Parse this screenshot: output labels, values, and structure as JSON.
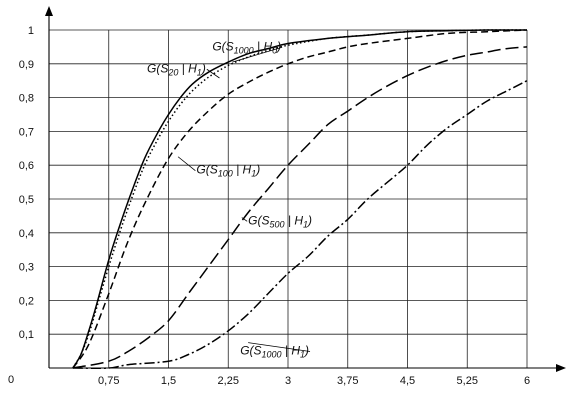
{
  "chart_data": {
    "type": "line",
    "title": "",
    "xlabel": "",
    "ylabel": "",
    "xlim": [
      0,
      6
    ],
    "ylim": [
      0,
      1
    ],
    "grid": true,
    "x_ticks": [
      "0,75",
      "1,5",
      "2,25",
      "3",
      "3,75",
      "4,5",
      "5,25",
      "6"
    ],
    "x_tick_values": [
      0.75,
      1.5,
      2.25,
      3,
      3.75,
      4.5,
      5.25,
      6
    ],
    "y_ticks": [
      "0",
      "0,1",
      "0,2",
      "0,3",
      "0,4",
      "0,5",
      "0,6",
      "0,7",
      "0,8",
      "0,9",
      "1"
    ],
    "y_tick_values": [
      0,
      0.1,
      0.2,
      0.3,
      0.4,
      0.5,
      0.6,
      0.7,
      0.8,
      0.9,
      1
    ],
    "series": [
      {
        "label_main": "G(S",
        "label_sub": "1000",
        "label_tail": " | H",
        "label_sub2": "0",
        "label_end": ")",
        "style": "solid",
        "label_at": [
          2.05,
          0.94
        ],
        "leader_to": [
          2.3,
          0.905
        ],
        "x": [
          0.3,
          0.4,
          0.5,
          0.6,
          0.75,
          0.9,
          1.05,
          1.2,
          1.35,
          1.5,
          1.65,
          1.8,
          2.0,
          2.25,
          2.5,
          2.75,
          3.0,
          3.5,
          4.0,
          4.5,
          5.0,
          5.5,
          6.0
        ],
        "y": [
          0.0,
          0.04,
          0.11,
          0.19,
          0.32,
          0.43,
          0.53,
          0.62,
          0.69,
          0.75,
          0.8,
          0.84,
          0.875,
          0.905,
          0.93,
          0.945,
          0.96,
          0.975,
          0.985,
          0.995,
          0.998,
          1.0,
          1.0
        ]
      },
      {
        "label_main": "G(S",
        "label_sub": "20",
        "label_tail": " | H",
        "label_sub2": "1",
        "label_end": ")",
        "style": "dotted",
        "label_at": [
          1.23,
          0.875
        ],
        "leader_to": [
          2.14,
          0.858
        ],
        "x": [
          0.3,
          0.4,
          0.5,
          0.6,
          0.75,
          0.9,
          1.05,
          1.2,
          1.35,
          1.5,
          1.65,
          1.8,
          2.0,
          2.25,
          2.5,
          2.75,
          3.0,
          3.5,
          4.0,
          4.5,
          5.0,
          5.5,
          6.0
        ],
        "y": [
          0.0,
          0.04,
          0.1,
          0.18,
          0.3,
          0.41,
          0.51,
          0.6,
          0.67,
          0.73,
          0.78,
          0.82,
          0.86,
          0.895,
          0.92,
          0.94,
          0.955,
          0.975,
          0.985,
          0.995,
          0.998,
          1.0,
          1.0
        ]
      },
      {
        "label_main": "G(S",
        "label_sub": "100",
        "label_tail": " | H",
        "label_sub2": "1",
        "label_end": ")",
        "style": "dashed",
        "label_at": [
          1.85,
          0.575
        ],
        "leader_to": [
          1.62,
          0.625
        ],
        "x": [
          0.3,
          0.5,
          0.75,
          1.0,
          1.25,
          1.5,
          1.75,
          2.0,
          2.25,
          2.5,
          2.75,
          3.0,
          3.25,
          3.5,
          3.75,
          4.0,
          4.5,
          5.0,
          5.5,
          6.0
        ],
        "y": [
          0.0,
          0.07,
          0.22,
          0.38,
          0.51,
          0.62,
          0.7,
          0.76,
          0.81,
          0.845,
          0.875,
          0.9,
          0.92,
          0.935,
          0.95,
          0.96,
          0.975,
          0.99,
          0.995,
          1.0
        ]
      },
      {
        "label_main": "G(S",
        "label_sub": "500",
        "label_tail": " | H",
        "label_sub2": "1",
        "label_end": ")",
        "style": "longdash",
        "label_at": [
          2.5,
          0.425
        ],
        "leader_to": [
          2.42,
          0.445
        ],
        "x": [
          0.3,
          0.75,
          1.0,
          1.25,
          1.5,
          1.75,
          2.0,
          2.25,
          2.5,
          2.75,
          3.0,
          3.25,
          3.5,
          3.75,
          4.0,
          4.25,
          4.5,
          4.75,
          5.0,
          5.25,
          5.5,
          5.75,
          6.0
        ],
        "y": [
          0.0,
          0.02,
          0.05,
          0.09,
          0.14,
          0.22,
          0.3,
          0.38,
          0.46,
          0.53,
          0.6,
          0.66,
          0.72,
          0.76,
          0.8,
          0.835,
          0.865,
          0.89,
          0.91,
          0.925,
          0.935,
          0.945,
          0.95
        ]
      },
      {
        "label_main": "G(S",
        "label_sub": "1000",
        "label_tail": " | H",
        "label_sub2": "1",
        "label_end": ")",
        "style": "dashdot",
        "label_at": [
          2.4,
          0.04
        ],
        "leader_to": [
          2.5,
          0.075
        ],
        "x": [
          0.3,
          0.75,
          1.0,
          1.5,
          1.75,
          2.0,
          2.25,
          2.5,
          2.75,
          3.0,
          3.25,
          3.5,
          3.75,
          4.0,
          4.25,
          4.5,
          4.75,
          5.0,
          5.25,
          5.5,
          5.75,
          6.0
        ],
        "y": [
          0.0,
          0.0,
          0.01,
          0.02,
          0.04,
          0.07,
          0.11,
          0.16,
          0.22,
          0.28,
          0.33,
          0.39,
          0.44,
          0.5,
          0.55,
          0.6,
          0.66,
          0.71,
          0.75,
          0.79,
          0.82,
          0.85
        ]
      }
    ]
  }
}
